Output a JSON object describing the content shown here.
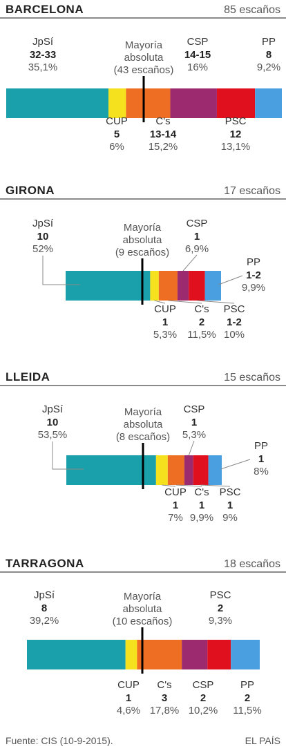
{
  "colors": {
    "JpSí": "#1aa0aa",
    "CUP": "#f5e11e",
    "C's": "#ee6e23",
    "CSP": "#9b2a6e",
    "PSC": "#e0101e",
    "PP": "#4a9fe0",
    "rule": "#000000",
    "leader": "#888888"
  },
  "majority_label": [
    "Mayoría",
    "absoluta"
  ],
  "chart_data": [
    {
      "type": "bar",
      "title": "BARCELONA",
      "seats_label": "85 escaños",
      "majority_seats": "(43 escaños)",
      "parties": [
        {
          "name": "JpSí",
          "seats": "32-33",
          "pct": "35,1%",
          "value": 35.1
        },
        {
          "name": "CUP",
          "seats": "5",
          "pct": "6%",
          "value": 6
        },
        {
          "name": "C's",
          "seats": "13-14",
          "pct": "15,2%",
          "value": 15.2
        },
        {
          "name": "CSP",
          "seats": "14-15",
          "pct": "16%",
          "value": 16
        },
        {
          "name": "PSC",
          "seats": "12",
          "pct": "13,1%",
          "value": 13.1
        },
        {
          "name": "PP",
          "seats": "8",
          "pct": "9,2%",
          "value": 9.2
        }
      ]
    },
    {
      "type": "bar",
      "title": "GIRONA",
      "seats_label": "17 escaños",
      "majority_seats": "(9 escaños)",
      "parties": [
        {
          "name": "JpSí",
          "seats": "10",
          "pct": "52%",
          "value": 52
        },
        {
          "name": "CUP",
          "seats": "1",
          "pct": "5,3%",
          "value": 5.3
        },
        {
          "name": "C's",
          "seats": "2",
          "pct": "11,5%",
          "value": 11.5
        },
        {
          "name": "CSP",
          "seats": "1",
          "pct": "6,9%",
          "value": 6.9
        },
        {
          "name": "PSC",
          "seats": "1-2",
          "pct": "10%",
          "value": 10
        },
        {
          "name": "PP",
          "seats": "1-2",
          "pct": "9,9%",
          "value": 9.9
        }
      ]
    },
    {
      "type": "bar",
      "title": "LLEIDA",
      "seats_label": "15 escaños",
      "majority_seats": "(8 escaños)",
      "parties": [
        {
          "name": "JpSí",
          "seats": "10",
          "pct": "53,5%",
          "value": 53.5
        },
        {
          "name": "CUP",
          "seats": "1",
          "pct": "7%",
          "value": 7
        },
        {
          "name": "C's",
          "seats": "1",
          "pct": "9,9%",
          "value": 9.9
        },
        {
          "name": "CSP",
          "seats": "1",
          "pct": "5,3%",
          "value": 5.3
        },
        {
          "name": "PSC",
          "seats": "1",
          "pct": "9%",
          "value": 9
        },
        {
          "name": "PP",
          "seats": "1",
          "pct": "8%",
          "value": 8
        }
      ]
    },
    {
      "type": "bar",
      "title": "TARRAGONA",
      "seats_label": "18 escaños",
      "majority_seats": "(10 escaños)",
      "parties": [
        {
          "name": "JpSí",
          "seats": "8",
          "pct": "39,2%",
          "value": 39.2
        },
        {
          "name": "CUP",
          "seats": "1",
          "pct": "4,6%",
          "value": 4.6
        },
        {
          "name": "C's",
          "seats": "3",
          "pct": "17,8%",
          "value": 17.8
        },
        {
          "name": "CSP",
          "seats": "2",
          "pct": "10,2%",
          "value": 10.2
        },
        {
          "name": "PSC",
          "seats": "2",
          "pct": "9,3%",
          "value": 9.3
        },
        {
          "name": "PP",
          "seats": "2",
          "pct": "11,5%",
          "value": 11.5
        }
      ]
    }
  ],
  "footer": {
    "source": "Fuente: CIS (10-9-2015).",
    "brand": "EL PAÍS"
  }
}
